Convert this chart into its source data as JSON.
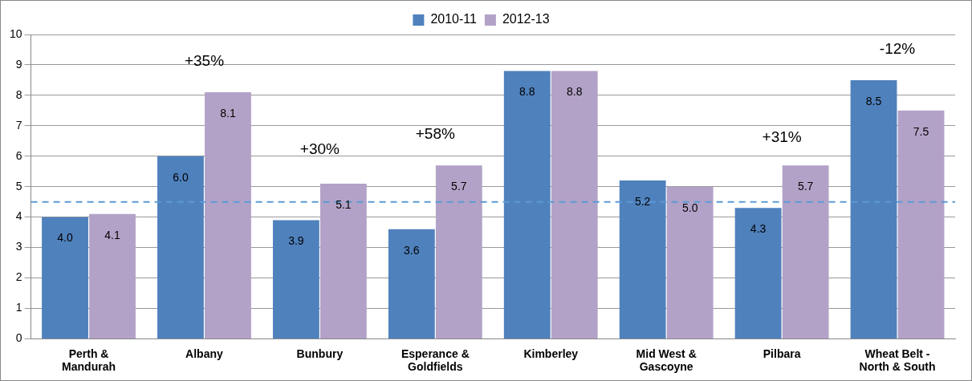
{
  "chart_data": {
    "type": "bar",
    "categories": [
      "Perth & Mandurah",
      "Albany",
      "Bunbury",
      "Esperance & Goldfields",
      "Kimberley",
      "Mid West & Gascoyne",
      "Pilbara",
      "Wheat Belt - North & South"
    ],
    "series": [
      {
        "name": "2010-11",
        "color": "#4f81bd",
        "values": [
          4.0,
          6.0,
          3.9,
          3.6,
          8.8,
          5.2,
          4.3,
          8.5
        ],
        "value_labels": [
          "4.0",
          "6.0",
          "3.9",
          "3.6",
          "8.8",
          "5.2",
          "4.3",
          "8.5"
        ]
      },
      {
        "name": "2012-13",
        "color": "#b3a2c7",
        "values": [
          4.1,
          8.1,
          5.1,
          5.7,
          8.8,
          5.0,
          5.7,
          7.5
        ],
        "value_labels": [
          "4.1",
          "8.1",
          "5.1",
          "5.7",
          "8.8",
          "5.0",
          "5.7",
          "7.5"
        ]
      }
    ],
    "ylim": [
      0,
      10
    ],
    "yticks": [
      0,
      1,
      2,
      3,
      4,
      5,
      6,
      7,
      8,
      9,
      10
    ],
    "grid": "y",
    "legend": "top",
    "ref_lines": [
      {
        "axis": "y",
        "value": 4.5,
        "color": "#5b9bd5",
        "line_style": "dashed"
      }
    ],
    "annotations": [
      "+35%",
      "+30%",
      "+58%",
      "+31%",
      "-12%"
    ]
  }
}
